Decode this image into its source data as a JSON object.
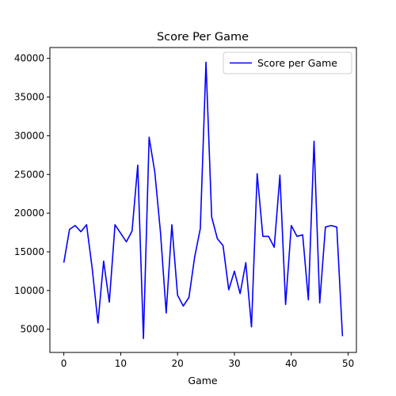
{
  "chart_data": {
    "type": "line",
    "title": "Score Per Game",
    "xlabel": "Game",
    "ylabel": "",
    "xlim": [
      -2.45,
      51.45
    ],
    "ylim": [
      2000,
      41400
    ],
    "x_ticks": [
      0,
      10,
      20,
      30,
      40,
      50
    ],
    "y_ticks": [
      5000,
      10000,
      15000,
      20000,
      25000,
      30000,
      35000,
      40000
    ],
    "grid": false,
    "legend_position": "top-right",
    "series": [
      {
        "name": "Score per Game",
        "color": "#0000ff",
        "x": [
          0,
          1,
          2,
          3,
          4,
          5,
          6,
          7,
          8,
          9,
          10,
          11,
          12,
          13,
          14,
          15,
          16,
          17,
          18,
          19,
          20,
          21,
          22,
          23,
          24,
          25,
          26,
          27,
          28,
          29,
          30,
          31,
          32,
          33,
          34,
          35,
          36,
          37,
          38,
          39,
          40,
          41,
          42,
          43,
          44,
          45,
          46,
          47,
          48,
          49
        ],
        "y": [
          13600,
          17900,
          18400,
          17600,
          18500,
          12800,
          5800,
          13800,
          8500,
          18500,
          17400,
          16300,
          17700,
          26200,
          3800,
          29800,
          25300,
          17500,
          7100,
          18500,
          9400,
          8000,
          9100,
          14300,
          18000,
          39500,
          19500,
          16700,
          15800,
          10100,
          12500,
          9600,
          13600,
          5300,
          25100,
          17000,
          17000,
          15600,
          24900,
          8200,
          18400,
          17000,
          17200,
          8800,
          29300,
          8400,
          18200,
          18400,
          18200,
          4100
        ]
      }
    ]
  }
}
